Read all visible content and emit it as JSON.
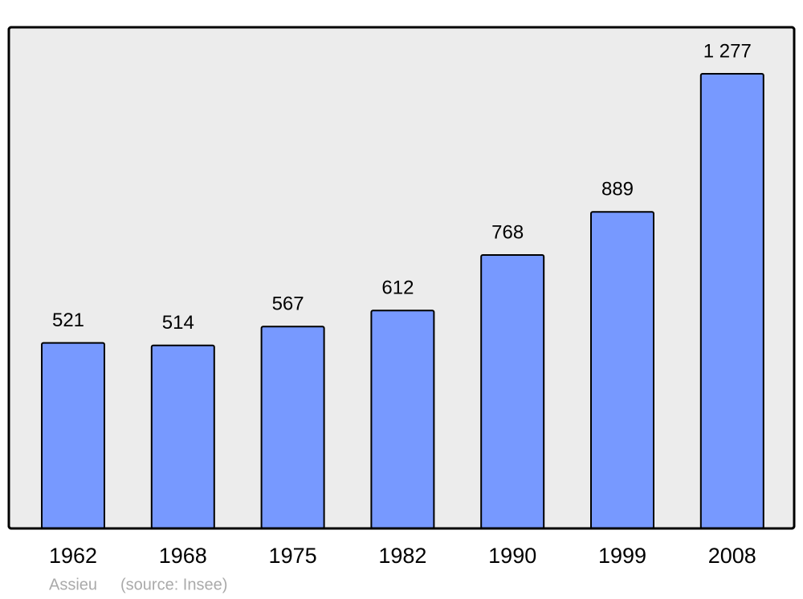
{
  "chart_data": {
    "type": "bar",
    "categories": [
      "1962",
      "1968",
      "1975",
      "1982",
      "1990",
      "1999",
      "2008"
    ],
    "values": [
      521,
      514,
      567,
      612,
      768,
      889,
      1277
    ],
    "value_labels": [
      "521",
      "514",
      "567",
      "612",
      "768",
      "889",
      "1 277"
    ],
    "color": "#7799ff",
    "annotations": [
      "Assieu",
      "(source: Insee)"
    ]
  }
}
